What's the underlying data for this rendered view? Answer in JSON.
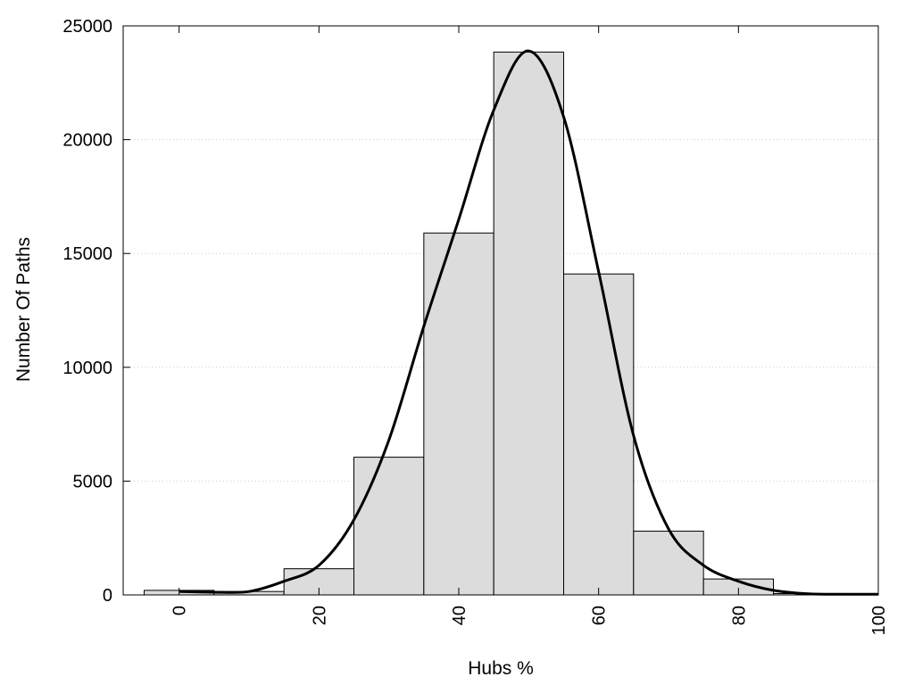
{
  "chart_data": {
    "type": "bar",
    "title": "",
    "xlabel": "Hubs %",
    "ylabel": "Number Of Paths",
    "xlim": [
      -8,
      100
    ],
    "ylim": [
      0,
      25000
    ],
    "xticks": [
      0,
      20,
      40,
      60,
      80,
      100
    ],
    "xtick_labels": [
      "0",
      "20",
      "40",
      "60",
      "80",
      "100"
    ],
    "yticks": [
      0,
      5000,
      10000,
      15000,
      20000,
      25000
    ],
    "ytick_labels": [
      "0",
      "5000",
      "10000",
      "15000",
      "20000",
      "25000"
    ],
    "grid": "horizontal dotted",
    "bin_width": 10,
    "bins": [
      {
        "center": 0,
        "value": 200
      },
      {
        "center": 10,
        "value": 150
      },
      {
        "center": 20,
        "value": 1150
      },
      {
        "center": 30,
        "value": 6050
      },
      {
        "center": 40,
        "value": 15900
      },
      {
        "center": 50,
        "value": 23850
      },
      {
        "center": 60,
        "value": 14100
      },
      {
        "center": 70,
        "value": 2800
      },
      {
        "center": 80,
        "value": 700
      },
      {
        "center": 90,
        "value": 60
      },
      {
        "center": 100,
        "value": 30
      }
    ],
    "curve": {
      "x": [
        0,
        5,
        10,
        15,
        20,
        25,
        30,
        35,
        40,
        45,
        50,
        55,
        60,
        65,
        70,
        75,
        80,
        85,
        90,
        95,
        100
      ],
      "y": [
        150,
        120,
        150,
        600,
        1300,
        3300,
        6800,
        11800,
        16500,
        21300,
        23900,
        21000,
        14200,
        7000,
        2900,
        1300,
        600,
        200,
        50,
        30,
        30
      ]
    },
    "colors": {
      "bar_fill": "#dcdcdc",
      "bar_stroke": "#000000",
      "curve": "#000000",
      "grid": "#cccccc"
    }
  }
}
